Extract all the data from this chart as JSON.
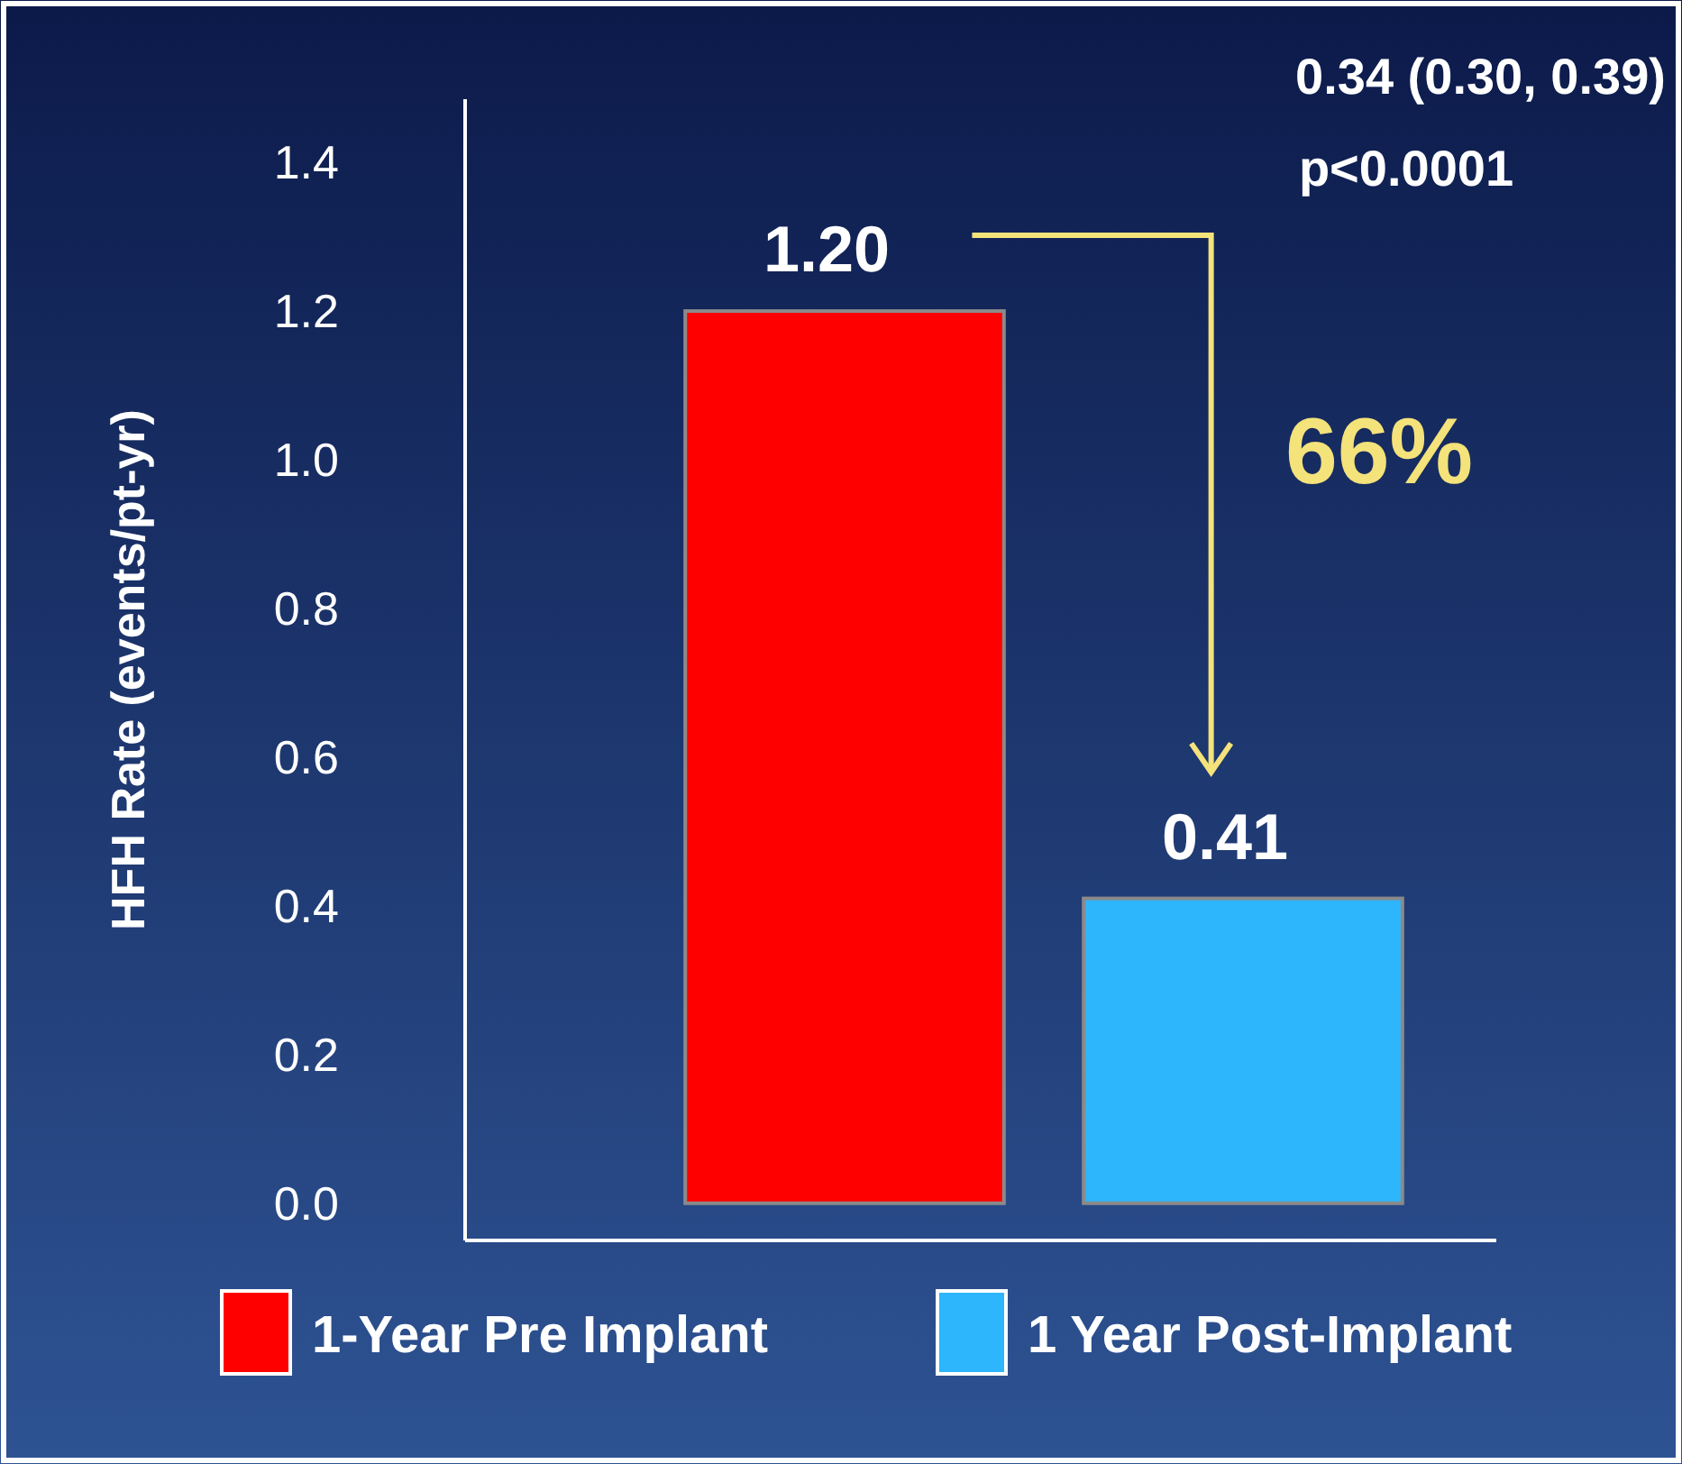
{
  "chart_data": {
    "type": "bar",
    "ylabel": "HFH Rate (events/pt-yr)",
    "categories": [
      null,
      null
    ],
    "series": [
      {
        "name": "1-Year Pre Implant",
        "color": "#ff0000",
        "values": [
          1.2,
          null
        ]
      },
      {
        "name": "1 Year Post-Implant",
        "color": "#2db6fb",
        "values": [
          null,
          0.41
        ]
      }
    ],
    "ylim": [
      -0.05,
      1.485
    ],
    "yticks": [
      {
        "value": 0,
        "label": "0.0"
      },
      {
        "value": 0.2,
        "label": "0.2"
      },
      {
        "value": 0.4,
        "label": "0.4"
      },
      {
        "value": 0.6,
        "label": "0.6"
      },
      {
        "value": 0.8,
        "label": "0.8"
      },
      {
        "value": 1,
        "label": "1.0"
      },
      {
        "value": 1.2,
        "label": "1.2"
      },
      {
        "value": 1.4,
        "label": "1.4"
      }
    ],
    "value_labels": [
      "1.20",
      "0.41"
    ],
    "legend": "bottom",
    "grid": false,
    "annotations": [
      "0.34 (0.30, 0.39)",
      "p<0.0001",
      "66%"
    ]
  }
}
